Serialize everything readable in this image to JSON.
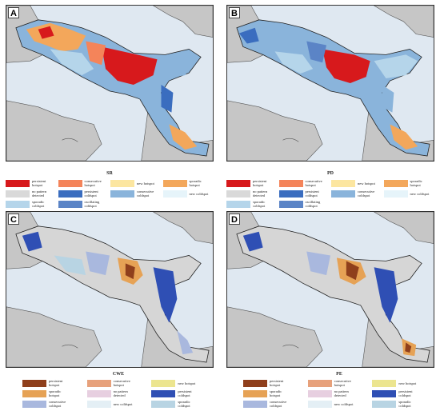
{
  "panels": [
    {
      "label": "A",
      "title": "SR",
      "variant": "sr"
    },
    {
      "label": "B",
      "title": "PD",
      "variant": "pd"
    },
    {
      "label": "C",
      "title": "CWE",
      "variant": "cwe"
    },
    {
      "label": "D",
      "title": "PE",
      "variant": "pe"
    }
  ],
  "legend_top": [
    {
      "label": "persistent\nhotspot",
      "color": "#d7191c"
    },
    {
      "label": "consecutive\nhotspot",
      "color": "#f4845a"
    },
    {
      "label": "new hotspot",
      "color": "#fce6a0"
    },
    {
      "label": "sporadic\nhotspot",
      "color": "#f3a75b"
    },
    {
      "label": "no pattern\ndetected",
      "color": "#d9d9d9"
    },
    {
      "label": "persistent\ncoldspot",
      "color": "#3a6dbf"
    },
    {
      "label": "consecutive\ncoldspot",
      "color": "#8ab4db"
    },
    {
      "label": "new coldspot",
      "color": "#e6f4fa"
    },
    {
      "label": "sporadic\ncoldspot",
      "color": "#b5d5ea"
    },
    {
      "label": "oscillating\ncoldspot",
      "color": "#5b84c6"
    }
  ],
  "legend_bottom": [
    {
      "label": "persistent\nhotspot",
      "color": "#8f3f1c"
    },
    {
      "label": "consecutive\nhotspot",
      "color": "#e7a17b"
    },
    {
      "label": "new hotspot",
      "color": "#ece58f"
    },
    {
      "label": "sporadic\nhotspot",
      "color": "#e6a255"
    },
    {
      "label": "no pattern\ndetected",
      "color": "#e7cfe0"
    },
    {
      "label": "persistent\ncoldspot",
      "color": "#2f4fb4"
    },
    {
      "label": "consecutive\ncoldspot",
      "color": "#a9b8de"
    },
    {
      "label": "new coldspot",
      "color": "#e4eff5"
    },
    {
      "label": "sporadic\ncoldspot",
      "color": "#b8d4e3"
    }
  ],
  "map_colors": {
    "sea": "#dfe8f1",
    "land": "#c6c6c6",
    "gray": "#d6d6d6"
  }
}
